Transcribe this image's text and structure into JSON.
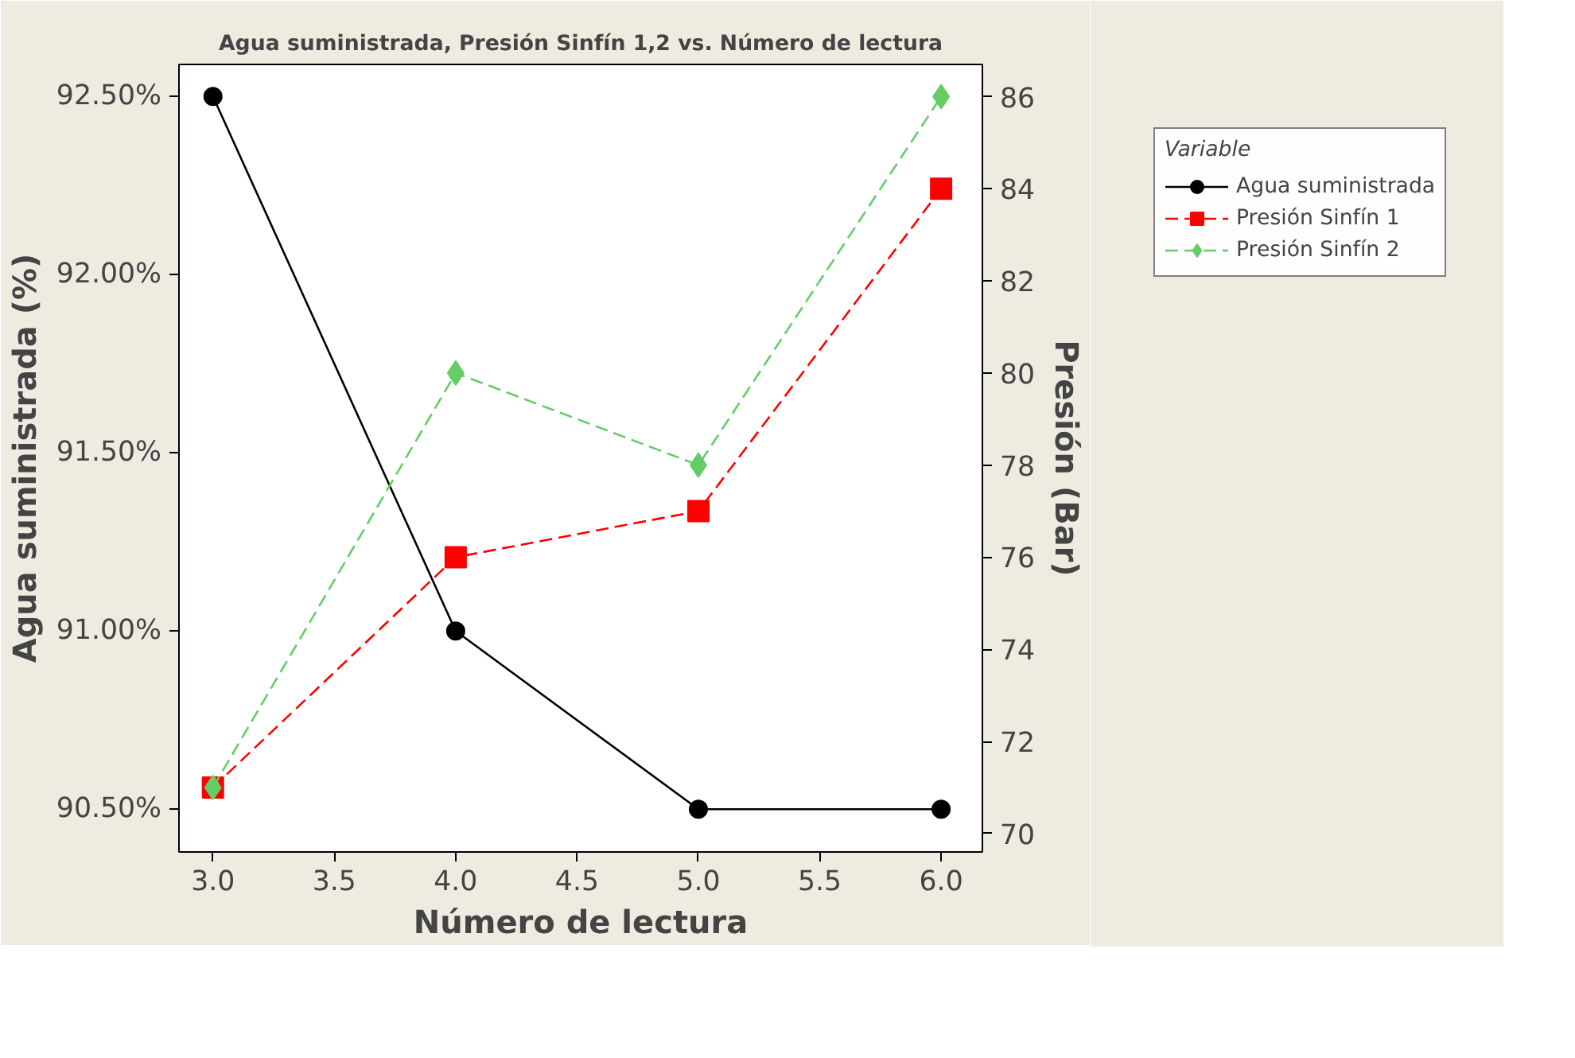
{
  "chart_data": {
    "type": "line",
    "title": "Agua suministrada, Presión Sinfín 1,2 vs. Número de lectura",
    "xlabel": "Número de lectura",
    "ylabel": "Agua suministrada (%)",
    "y2label": "Presión (Bar)",
    "legend_title": "Variable",
    "x": [
      3,
      4,
      5,
      6
    ],
    "xlim": [
      2.86,
      6.17
    ],
    "xticks": [
      {
        "value": 3,
        "label": "3.0"
      },
      {
        "value": 3.5,
        "label": "3.5"
      },
      {
        "value": 4,
        "label": "4.0"
      },
      {
        "value": 4.5,
        "label": "4.5"
      },
      {
        "value": 5,
        "label": "5.0"
      },
      {
        "value": 5.5,
        "label": "5.5"
      },
      {
        "value": 6,
        "label": "6.0"
      }
    ],
    "ylim": [
      90.38,
      92.59
    ],
    "yticks": [
      {
        "value": 90.5,
        "label": "90.50%"
      },
      {
        "value": 91,
        "label": "91.00%"
      },
      {
        "value": 91.5,
        "label": "91.50%"
      },
      {
        "value": 92,
        "label": "92.00%"
      },
      {
        "value": 92.5,
        "label": "92.50%"
      }
    ],
    "y2lim": [
      69.6,
      86.7
    ],
    "y2ticks": [
      70,
      72,
      74,
      76,
      78,
      80,
      82,
      84,
      86
    ],
    "grid": false,
    "legend": "top right",
    "series": [
      {
        "name": "Agua suministrada",
        "color": "#000000",
        "values": [
          92.5,
          91.0,
          90.5,
          90.5
        ],
        "marker": "circle",
        "line_style": "solid"
      },
      {
        "name": "Presión Sinfín 1",
        "color": "#ff0000",
        "values": [
          71,
          76,
          77,
          84
        ],
        "marker": "square",
        "line_style": "dashed",
        "axis": "y2"
      },
      {
        "name": "Presión Sinfín 2",
        "color": "#66cc66",
        "values": [
          71,
          80,
          78,
          86
        ],
        "marker": "diamond",
        "line_style": "dashed",
        "axis": "y2"
      }
    ]
  }
}
